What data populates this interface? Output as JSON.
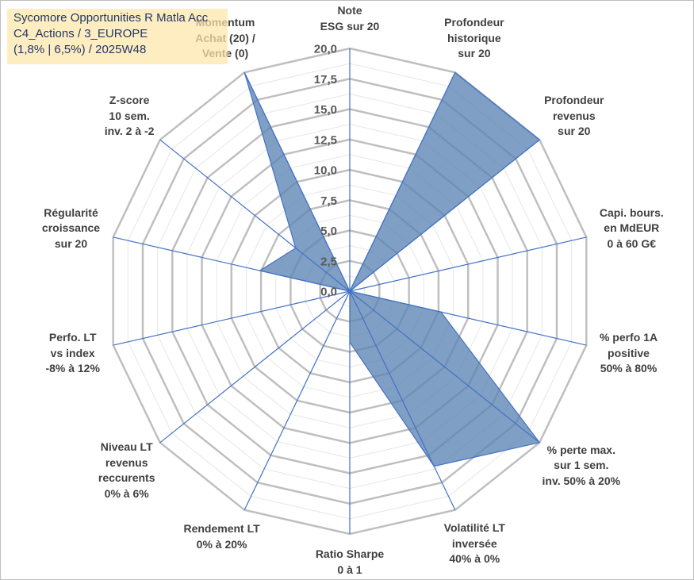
{
  "title": {
    "lines": [
      "Sycomore Opportunities R Matla Acc",
      "C4_Actions / 3_EUROPE",
      "(1,8% | 6,5%) / 2025W48"
    ]
  },
  "colors": {
    "fill": "#5b84b5",
    "stroke": "#4472c4",
    "grid_major": "#bfbfbf",
    "grid_minor": "#e6e6e6",
    "title_bg": "#ffe6aa",
    "title_text": "#1f3864"
  },
  "chart_data": {
    "type": "radar",
    "title": "",
    "rmin": 0,
    "rmax": 20,
    "tick_values": [
      0,
      2.5,
      5,
      7.5,
      10,
      12.5,
      15,
      17.5,
      20
    ],
    "tick_labels": [
      "0,0",
      "2,5",
      "5,0",
      "7,5",
      "10,0",
      "12,5",
      "15,0",
      "17,5",
      "20,0"
    ],
    "minor_step": 1.25,
    "grid": true,
    "axes": [
      {
        "lines": [
          "Note",
          "ESG sur 20"
        ]
      },
      {
        "lines": [
          "Profondeur",
          "historique",
          "sur 20"
        ]
      },
      {
        "lines": [
          "Profondeur",
          "revenus",
          "sur 20"
        ]
      },
      {
        "lines": [
          "Capi. bours.",
          "en MdEUR",
          "0 à 60 G€"
        ]
      },
      {
        "lines": [
          "% perfo 1A",
          "positive",
          "50% à 80%"
        ]
      },
      {
        "lines": [
          "% perte max.",
          "sur 1 sem.",
          "inv. 50% à 20%"
        ]
      },
      {
        "lines": [
          "Volatilité LT",
          "inversée",
          "40% à 0%"
        ]
      },
      {
        "lines": [
          "Ratio Sharpe",
          "0 à 1"
        ]
      },
      {
        "lines": [
          "Rendement LT",
          "0% à 20%"
        ]
      },
      {
        "lines": [
          "Niveau LT",
          "revenus",
          "reccurents",
          "0% à 6%"
        ]
      },
      {
        "lines": [
          "Perfo. LT",
          "vs index",
          "-8% à 12%"
        ]
      },
      {
        "lines": [
          "Régularité",
          "croissance",
          "sur 20"
        ]
      },
      {
        "lines": [
          "Z-score",
          "10 sem.",
          "inv. 2 à -2"
        ]
      },
      {
        "lines": [
          "Momentum",
          "Achat (20) /",
          "Vente (0)"
        ]
      }
    ],
    "series": [
      {
        "values": [
          0,
          20,
          20,
          0,
          7.7,
          20,
          16,
          4.2,
          0,
          0,
          0,
          7.6,
          5.7,
          20
        ]
      }
    ]
  }
}
